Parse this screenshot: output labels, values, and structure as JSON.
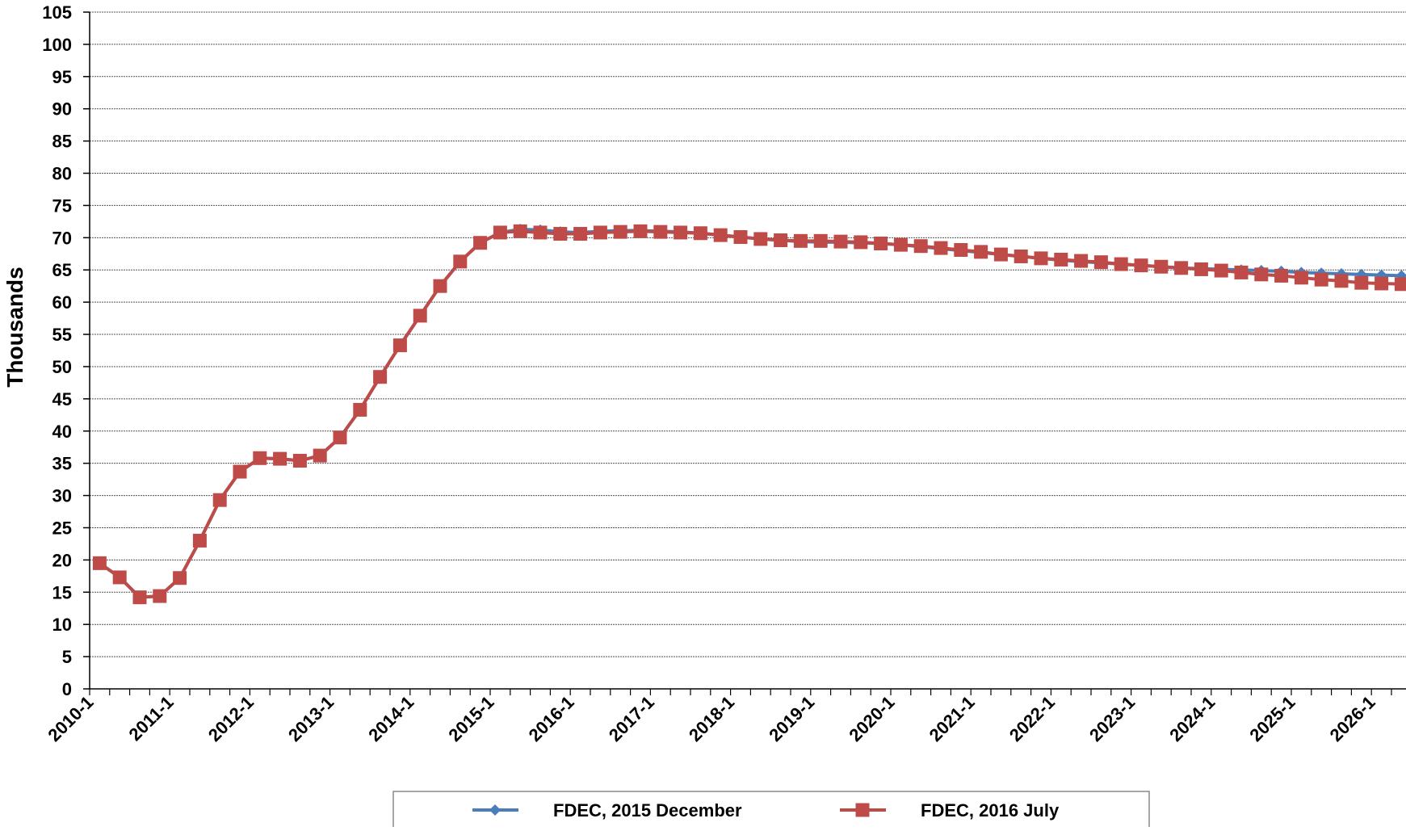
{
  "chart_data": {
    "type": "line",
    "title": "",
    "xlabel": "",
    "ylabel": "Thousands",
    "ylim": [
      0,
      105
    ],
    "y_ticks": [
      0,
      5,
      10,
      15,
      20,
      25,
      30,
      35,
      40,
      45,
      50,
      55,
      60,
      65,
      70,
      75,
      80,
      85,
      90,
      95,
      100,
      105
    ],
    "x_tick_labels": [
      "2010-1",
      "2011-1",
      "2012-1",
      "2013-1",
      "2014-1",
      "2015-1",
      "2016-1",
      "2017-1",
      "2018-1",
      "2019-1",
      "2020-1",
      "2021-1",
      "2022-1",
      "2023-1",
      "2024-1",
      "2025-1",
      "2026-1"
    ],
    "x_periods": [
      "2010-1",
      "2010-2",
      "2010-3",
      "2010-4",
      "2011-1",
      "2011-2",
      "2011-3",
      "2011-4",
      "2012-1",
      "2012-2",
      "2012-3",
      "2012-4",
      "2013-1",
      "2013-2",
      "2013-3",
      "2013-4",
      "2014-1",
      "2014-2",
      "2014-3",
      "2014-4",
      "2015-1",
      "2015-2",
      "2015-3",
      "2015-4",
      "2016-1",
      "2016-2",
      "2016-3",
      "2016-4",
      "2017-1",
      "2017-2",
      "2017-3",
      "2017-4",
      "2018-1",
      "2018-2",
      "2018-3",
      "2018-4",
      "2019-1",
      "2019-2",
      "2019-3",
      "2019-4",
      "2020-1",
      "2020-2",
      "2020-3",
      "2020-4",
      "2021-1",
      "2021-2",
      "2021-3",
      "2021-4",
      "2022-1",
      "2022-2",
      "2022-3",
      "2022-4",
      "2023-1",
      "2023-2",
      "2023-3",
      "2023-4",
      "2024-1",
      "2024-2",
      "2024-3",
      "2024-4",
      "2025-1",
      "2025-2",
      "2025-3",
      "2025-4",
      "2026-1",
      "2026-2"
    ],
    "grid": true,
    "legend_position": "bottom",
    "series": [
      {
        "name": "FDEC, 2015 December",
        "color": "#4a7ebb",
        "marker": "diamond",
        "values": [
          19.5,
          17.3,
          14.2,
          14.4,
          17.2,
          23.0,
          29.3,
          33.7,
          35.8,
          35.7,
          35.4,
          36.2,
          39.0,
          43.3,
          48.4,
          53.3,
          57.9,
          62.5,
          66.3,
          69.2,
          70.8,
          71.3,
          71.2,
          70.9,
          70.8,
          71.0,
          71.1,
          71.1,
          71.0,
          70.9,
          70.7,
          70.4,
          70.1,
          69.8,
          69.6,
          69.4,
          69.3,
          69.3,
          69.2,
          69.1,
          68.9,
          68.6,
          68.3,
          68.0,
          67.7,
          67.4,
          67.1,
          66.8,
          66.5,
          66.3,
          66.1,
          65.9,
          65.7,
          65.5,
          65.3,
          65.2,
          65.1,
          65.0,
          64.9,
          64.8,
          64.6,
          64.5,
          64.4,
          64.3,
          64.2,
          64.1
        ]
      },
      {
        "name": "FDEC, 2016 July",
        "color": "#be4b48",
        "marker": "square",
        "values": [
          19.5,
          17.3,
          14.2,
          14.4,
          17.2,
          23.0,
          29.3,
          33.7,
          35.8,
          35.7,
          35.4,
          36.2,
          39.0,
          43.3,
          48.4,
          53.3,
          57.9,
          62.5,
          66.3,
          69.2,
          70.8,
          71.0,
          70.8,
          70.6,
          70.6,
          70.8,
          70.9,
          71.0,
          70.9,
          70.8,
          70.7,
          70.4,
          70.1,
          69.8,
          69.6,
          69.5,
          69.5,
          69.4,
          69.3,
          69.1,
          68.9,
          68.7,
          68.4,
          68.1,
          67.8,
          67.4,
          67.1,
          66.8,
          66.6,
          66.4,
          66.2,
          65.9,
          65.7,
          65.5,
          65.3,
          65.1,
          64.9,
          64.6,
          64.3,
          64.1,
          63.8,
          63.5,
          63.3,
          63.0,
          62.9,
          62.8
        ]
      }
    ]
  }
}
